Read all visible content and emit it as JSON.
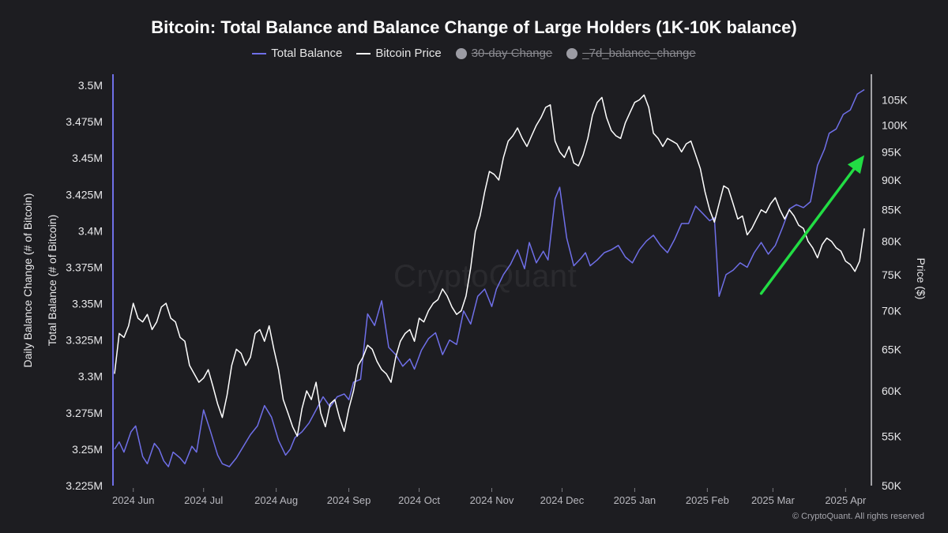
{
  "chart_data": {
    "type": "line",
    "title": "Bitcoin: Total Balance and Balance Change of Large Holders (1K-10K balance)",
    "legend": [
      {
        "label": "Total Balance",
        "color": "#6f6fe8",
        "active": true
      },
      {
        "label": "Bitcoin Price",
        "color": "#ffffff",
        "active": true
      },
      {
        "label": "30-day Change",
        "color": "#9c9ca4",
        "active": false
      },
      {
        "label": "_7d_balance_change",
        "color": "#9c9ca4",
        "active": false
      }
    ],
    "left_axis_outer_label": "Daily Balance Change (# of Bitcoin)",
    "left_axis_label": "Total Balance (# of Bitcoin)",
    "right_axis_label": "Price ($)",
    "x_ticks": [
      "2024 Jun",
      "2024 Jul",
      "2024 Aug",
      "2024 Sep",
      "2024 Oct",
      "2024 Nov",
      "2024 Dec",
      "2025 Jan",
      "2025 Feb",
      "2025 Mar",
      "2025 Apr"
    ],
    "left_ticks": [
      "3.225M",
      "3.25M",
      "3.275M",
      "3.3M",
      "3.325M",
      "3.35M",
      "3.375M",
      "3.4M",
      "3.425M",
      "3.45M",
      "3.475M",
      "3.5M"
    ],
    "left_tick_values": [
      3225000,
      3250000,
      3275000,
      3300000,
      3325000,
      3350000,
      3375000,
      3400000,
      3425000,
      3450000,
      3475000,
      3500000
    ],
    "left_ylim": [
      3225000,
      3500000
    ],
    "right_ticks": [
      "50K",
      "55K",
      "60K",
      "65K",
      "70K",
      "75K",
      "80K",
      "85K",
      "90K",
      "95K",
      "100K",
      "105K"
    ],
    "right_tick_values": [
      50000,
      55000,
      60000,
      65000,
      70000,
      75000,
      80000,
      85000,
      90000,
      95000,
      100000,
      105000
    ],
    "right_ylim": [
      50000,
      108000
    ],
    "right_scale": "log",
    "x_range_days": [
      0,
      322
    ],
    "x_tick_days": [
      8,
      38,
      69,
      100,
      130,
      161,
      191,
      222,
      253,
      281,
      312
    ],
    "series": [
      {
        "name": "Total Balance",
        "axis": "left",
        "days": [
          0,
          2,
          4,
          7,
          9,
          12,
          14,
          17,
          19,
          21,
          23,
          25,
          28,
          30,
          33,
          35,
          38,
          41,
          44,
          46,
          49,
          52,
          55,
          58,
          61,
          64,
          67,
          70,
          73,
          75,
          77,
          80,
          83,
          86,
          89,
          92,
          95,
          98,
          100,
          102,
          105,
          108,
          111,
          114,
          117,
          120,
          123,
          126,
          128,
          131,
          134,
          137,
          140,
          143,
          146,
          149,
          152,
          155,
          158,
          161,
          163,
          166,
          169,
          172,
          175,
          177,
          180,
          183,
          185,
          188,
          190,
          193,
          196,
          199,
          201,
          203,
          206,
          209,
          212,
          215,
          218,
          221,
          224,
          227,
          230,
          233,
          236,
          239,
          242,
          245,
          248,
          251,
          254,
          256,
          258,
          261,
          264,
          267,
          270,
          273,
          276,
          279,
          282,
          285,
          288,
          291,
          294,
          297,
          300,
          303,
          305,
          308,
          311,
          314,
          317,
          320
        ],
        "values": [
          3250000,
          3255000,
          3248000,
          3262000,
          3266000,
          3245000,
          3240000,
          3254000,
          3250000,
          3242000,
          3238000,
          3248000,
          3244000,
          3240000,
          3252000,
          3248000,
          3277000,
          3262000,
          3246000,
          3240000,
          3238000,
          3244000,
          3252000,
          3260000,
          3266000,
          3280000,
          3272000,
          3256000,
          3246000,
          3250000,
          3258000,
          3262000,
          3268000,
          3277000,
          3286000,
          3279000,
          3286000,
          3288000,
          3284000,
          3296000,
          3298000,
          3343000,
          3335000,
          3352000,
          3320000,
          3315000,
          3307000,
          3312000,
          3305000,
          3318000,
          3326000,
          3330000,
          3315000,
          3325000,
          3322000,
          3345000,
          3336000,
          3355000,
          3360000,
          3348000,
          3360000,
          3370000,
          3377000,
          3387000,
          3374000,
          3392000,
          3378000,
          3386000,
          3380000,
          3422000,
          3430000,
          3395000,
          3376000,
          3381000,
          3385000,
          3376000,
          3380000,
          3385000,
          3387000,
          3390000,
          3382000,
          3378000,
          3387000,
          3393000,
          3397000,
          3390000,
          3385000,
          3394000,
          3405000,
          3405000,
          3417000,
          3412000,
          3407000,
          3409000,
          3355000,
          3370000,
          3373000,
          3378000,
          3375000,
          3385000,
          3392000,
          3384000,
          3390000,
          3402000,
          3415000,
          3418000,
          3416000,
          3420000,
          3445000,
          3456000,
          3467000,
          3470000,
          3480000,
          3483000,
          3494000,
          3497000
        ],
        "color": "#6f6fe8"
      },
      {
        "name": "Bitcoin Price",
        "axis": "right",
        "days": [
          0,
          2,
          4,
          6,
          8,
          10,
          12,
          14,
          16,
          18,
          20,
          22,
          24,
          26,
          28,
          30,
          32,
          34,
          36,
          38,
          40,
          42,
          44,
          46,
          48,
          50,
          52,
          54,
          56,
          58,
          60,
          62,
          64,
          66,
          68,
          70,
          72,
          74,
          76,
          78,
          80,
          82,
          84,
          86,
          88,
          90,
          92,
          94,
          96,
          98,
          100,
          102,
          104,
          106,
          108,
          110,
          112,
          114,
          116,
          118,
          120,
          122,
          124,
          126,
          128,
          130,
          132,
          134,
          136,
          138,
          140,
          142,
          144,
          146,
          148,
          150,
          152,
          154,
          156,
          158,
          160,
          162,
          164,
          166,
          168,
          170,
          172,
          174,
          176,
          178,
          180,
          182,
          184,
          186,
          188,
          190,
          192,
          194,
          196,
          198,
          200,
          202,
          204,
          206,
          208,
          210,
          212,
          214,
          216,
          218,
          220,
          222,
          224,
          226,
          228,
          230,
          232,
          234,
          236,
          238,
          240,
          242,
          244,
          246,
          248,
          250,
          252,
          254,
          256,
          258,
          260,
          262,
          264,
          266,
          268,
          270,
          272,
          274,
          276,
          278,
          280,
          282,
          284,
          286,
          288,
          290,
          292,
          294,
          296,
          298,
          300,
          302,
          304,
          306,
          308,
          310,
          312,
          314,
          316,
          318,
          320
        ],
        "values": [
          62000,
          67000,
          66500,
          68000,
          71000,
          69000,
          68500,
          69500,
          67500,
          68500,
          70500,
          71000,
          69000,
          68500,
          66500,
          66000,
          63000,
          62000,
          61000,
          61500,
          62500,
          60500,
          58500,
          57000,
          59500,
          63000,
          65000,
          64500,
          63000,
          64000,
          67000,
          67500,
          66000,
          68000,
          65000,
          62500,
          59000,
          57500,
          56000,
          55000,
          58000,
          60000,
          59000,
          61000,
          57500,
          56000,
          58500,
          59000,
          57000,
          55500,
          58000,
          60000,
          63000,
          64000,
          65500,
          65000,
          63500,
          62500,
          62000,
          61000,
          64000,
          66000,
          67000,
          67500,
          66000,
          69000,
          68500,
          70000,
          71000,
          71500,
          73000,
          72000,
          70500,
          69500,
          70000,
          72000,
          76000,
          81500,
          84000,
          88000,
          91500,
          91000,
          90000,
          94000,
          97000,
          98000,
          99500,
          97500,
          96000,
          98000,
          100000,
          101500,
          103500,
          104000,
          97000,
          95000,
          94000,
          96000,
          93000,
          92500,
          94500,
          97500,
          102000,
          104500,
          105500,
          101500,
          99000,
          98000,
          97500,
          100500,
          102500,
          104500,
          105000,
          106000,
          103500,
          98500,
          97500,
          96000,
          97500,
          97000,
          96500,
          95000,
          96500,
          97000,
          94500,
          92000,
          88000,
          85000,
          83000,
          86000,
          89000,
          88500,
          86000,
          83500,
          84000,
          81000,
          82000,
          83500,
          85000,
          84500,
          86000,
          87000,
          85000,
          83500,
          85000,
          84000,
          82500,
          82000,
          80000,
          79000,
          77500,
          79500,
          80500,
          80000,
          79000,
          78500,
          77000,
          76500,
          75500,
          77000,
          82000
        ],
        "color": "#ffffff"
      }
    ],
    "annotation": {
      "type": "arrow",
      "color": "#22dd44",
      "meaning": "rising trend of total balance",
      "from": {
        "day": 276,
        "balance": 3357000
      },
      "to": {
        "day": 320,
        "balance": 3452000
      }
    }
  },
  "watermark": "CryptoQuant",
  "copyright": "© CryptoQuant. All rights reserved"
}
